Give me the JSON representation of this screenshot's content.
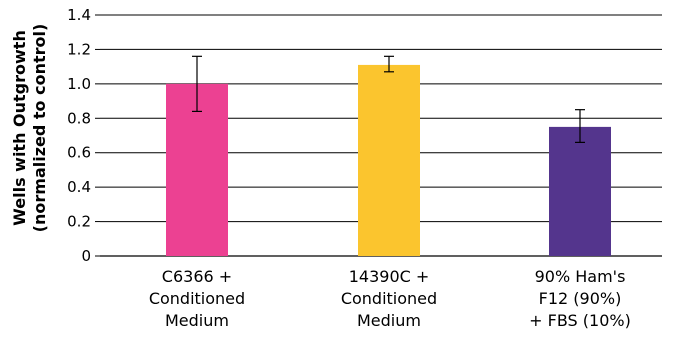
{
  "chart_data": {
    "type": "bar",
    "categories": [
      [
        "C6366 +",
        "Conditioned",
        "Medium"
      ],
      [
        "14390C +",
        "Conditioned",
        "Medium"
      ],
      [
        "90% Ham's",
        "F12 (90%)",
        "+ FBS (10%)"
      ]
    ],
    "values": [
      1.0,
      1.11,
      0.75
    ],
    "error_low": [
      0.84,
      1.07,
      0.66
    ],
    "error_high": [
      1.16,
      1.16,
      0.85
    ],
    "bar_colors": [
      "#EC4192",
      "#FBC52E",
      "#54358D"
    ],
    "ylabel": [
      "Wells with Outgrowth",
      "(normalized to control)"
    ],
    "ylim": [
      0,
      1.4
    ],
    "yticks": [
      "0",
      "0.2",
      "0.4",
      "0.6",
      "0.8",
      "1.0",
      "1.2",
      "1.4"
    ],
    "grid": true,
    "grid_color": "#000000"
  }
}
